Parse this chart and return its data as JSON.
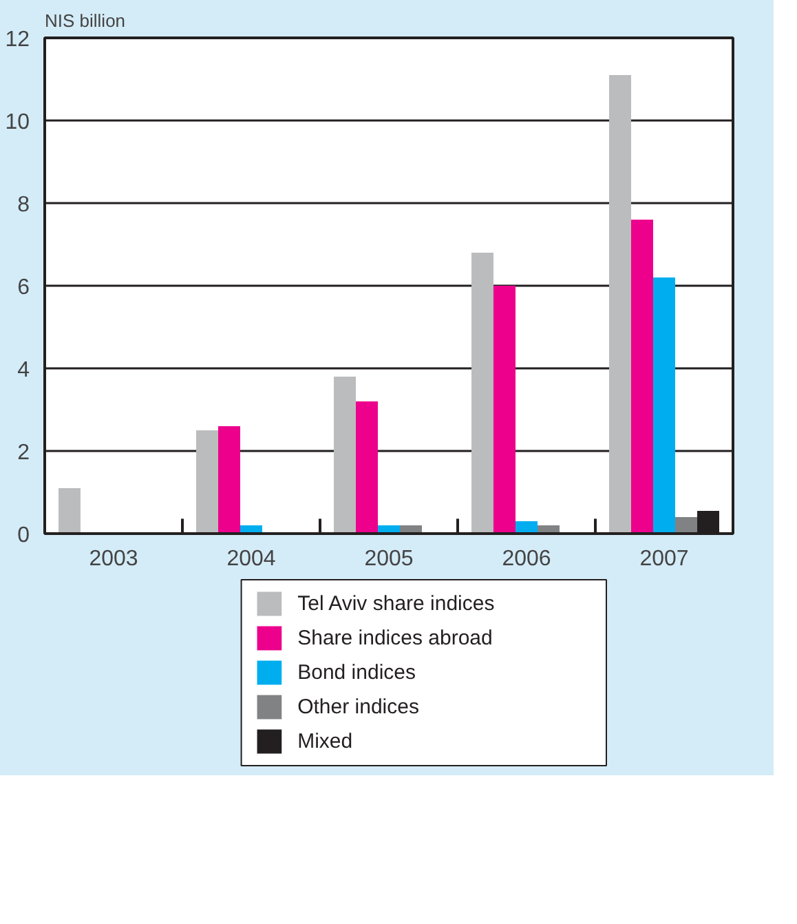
{
  "chart_data": {
    "type": "bar",
    "ylabel": "NIS billion",
    "categories": [
      "2003",
      "2004",
      "2005",
      "2006",
      "2007"
    ],
    "series": [
      {
        "name": "Tel Aviv share indices",
        "color": "#bbbcbe",
        "values": [
          1.1,
          2.5,
          3.8,
          6.8,
          11.1
        ]
      },
      {
        "name": "Share indices abroad",
        "color": "#ec008c",
        "values": [
          null,
          2.6,
          3.2,
          6.0,
          7.6
        ]
      },
      {
        "name": "Bond indices",
        "color": "#00aeef",
        "values": [
          null,
          0.2,
          0.2,
          0.3,
          6.2
        ]
      },
      {
        "name": "Other indices",
        "color": "#808284",
        "values": [
          null,
          null,
          0.2,
          0.2,
          0.4
        ]
      },
      {
        "name": "Mixed",
        "color": "#231f20",
        "values": [
          null,
          null,
          null,
          null,
          0.55
        ]
      }
    ],
    "ylim": [
      0,
      12
    ],
    "yticks": [
      0,
      2,
      4,
      6,
      8,
      10,
      12
    ],
    "grid": "y",
    "legend": "bottom"
  }
}
